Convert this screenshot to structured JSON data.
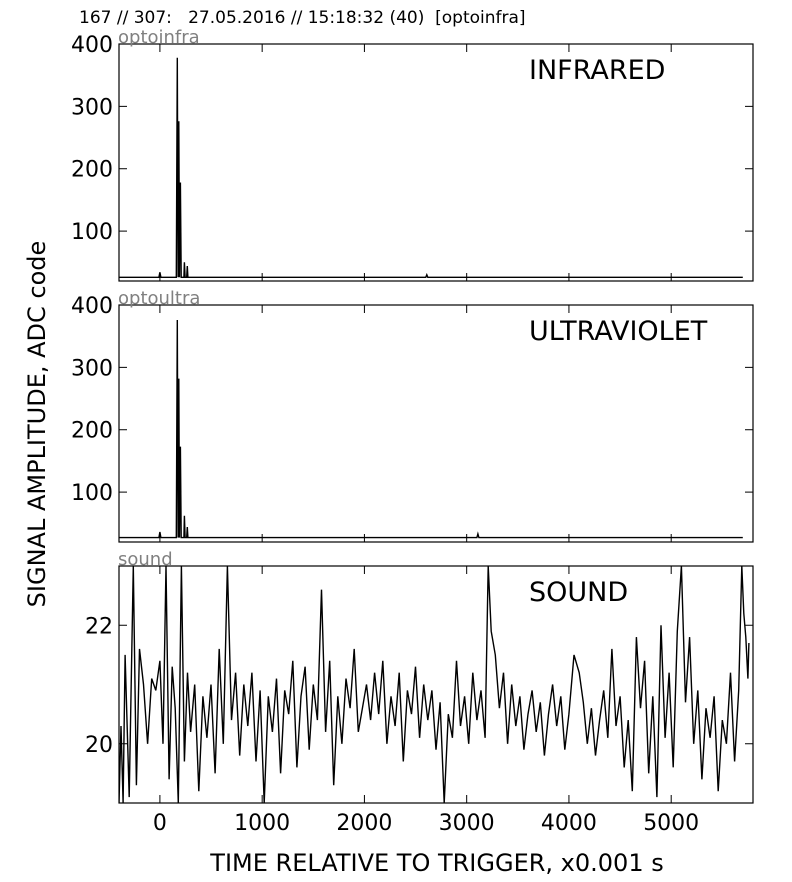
{
  "header": {
    "text": "167 // 307:   27.05.2016 // 15:18:32 (40)  [optoinfra]"
  },
  "axis_labels": {
    "y": "SIGNAL AMPLITUDE,  ADC code",
    "x": "TIME RELATIVE TO TRIGGER,   x0.001 s"
  },
  "x_axis": {
    "range": [
      -400,
      5800
    ],
    "ticks": [
      0,
      1000,
      2000,
      3000,
      4000,
      5000
    ],
    "tick_labels": [
      "0",
      "1000",
      "2000",
      "3000",
      "4000",
      "5000"
    ]
  },
  "chart_data": [
    {
      "type": "line",
      "name": "optoinfra",
      "title": "INFRARED",
      "ylim": [
        20,
        400
      ],
      "yticks": [
        100,
        200,
        300,
        400
      ],
      "ytick_labels": [
        "100",
        "200",
        "300",
        "400"
      ],
      "grid": false,
      "baseline": 26,
      "points": [
        [
          -400,
          26
        ],
        [
          -10,
          26
        ],
        [
          0,
          34
        ],
        [
          10,
          26
        ],
        [
          160,
          26
        ],
        [
          170,
          378
        ],
        [
          178,
          26
        ],
        [
          185,
          276
        ],
        [
          192,
          26
        ],
        [
          200,
          178
        ],
        [
          208,
          26
        ],
        [
          235,
          26
        ],
        [
          240,
          50
        ],
        [
          246,
          26
        ],
        [
          262,
          26
        ],
        [
          268,
          44
        ],
        [
          274,
          26
        ],
        [
          2600,
          26
        ],
        [
          2610,
          30
        ],
        [
          2620,
          26
        ],
        [
          5700,
          26
        ]
      ],
      "color": "#000000"
    },
    {
      "type": "line",
      "name": "optoultra",
      "title": "ULTRAVIOLET",
      "ylim": [
        20,
        400
      ],
      "yticks": [
        100,
        200,
        300,
        400
      ],
      "ytick_labels": [
        "100",
        "200",
        "300",
        "400"
      ],
      "grid": false,
      "baseline": 27,
      "points": [
        [
          -400,
          27
        ],
        [
          -10,
          27
        ],
        [
          0,
          36
        ],
        [
          10,
          27
        ],
        [
          160,
          27
        ],
        [
          170,
          376
        ],
        [
          178,
          27
        ],
        [
          185,
          282
        ],
        [
          192,
          27
        ],
        [
          200,
          173
        ],
        [
          208,
          27
        ],
        [
          235,
          27
        ],
        [
          240,
          62
        ],
        [
          246,
          27
        ],
        [
          262,
          27
        ],
        [
          268,
          44
        ],
        [
          274,
          27
        ],
        [
          3100,
          27
        ],
        [
          3110,
          33
        ],
        [
          3120,
          27
        ],
        [
          5700,
          27
        ]
      ],
      "color": "#000000"
    },
    {
      "type": "line",
      "name": "sound",
      "title": "SOUND",
      "ylim": [
        19.0,
        23.0
      ],
      "yticks": [
        20,
        22
      ],
      "ytick_labels": [
        "20",
        "22"
      ],
      "grid": false,
      "points": [
        [
          -400,
          19.0
        ],
        [
          -380,
          20.3
        ],
        [
          -360,
          19.0
        ],
        [
          -340,
          21.5
        ],
        [
          -300,
          19.1
        ],
        [
          -260,
          23.0
        ],
        [
          -230,
          19.3
        ],
        [
          -200,
          21.6
        ],
        [
          -160,
          21.0
        ],
        [
          -120,
          20.0
        ],
        [
          -80,
          21.1
        ],
        [
          -40,
          20.9
        ],
        [
          0,
          21.4
        ],
        [
          30,
          20.0
        ],
        [
          60,
          23.0
        ],
        [
          90,
          19.4
        ],
        [
          120,
          21.3
        ],
        [
          150,
          20.6
        ],
        [
          180,
          19.0
        ],
        [
          210,
          23.0
        ],
        [
          240,
          19.7
        ],
        [
          270,
          21.2
        ],
        [
          300,
          20.2
        ],
        [
          340,
          21.0
        ],
        [
          380,
          19.2
        ],
        [
          420,
          20.8
        ],
        [
          460,
          20.1
        ],
        [
          500,
          21.0
        ],
        [
          540,
          19.5
        ],
        [
          580,
          21.6
        ],
        [
          620,
          20.0
        ],
        [
          660,
          23.0
        ],
        [
          700,
          20.4
        ],
        [
          740,
          21.2
        ],
        [
          780,
          19.8
        ],
        [
          820,
          21.0
        ],
        [
          860,
          20.3
        ],
        [
          900,
          21.2
        ],
        [
          940,
          19.7
        ],
        [
          980,
          20.9
        ],
        [
          1020,
          19.0
        ],
        [
          1060,
          20.8
        ],
        [
          1100,
          20.2
        ],
        [
          1140,
          21.1
        ],
        [
          1180,
          19.5
        ],
        [
          1220,
          20.9
        ],
        [
          1260,
          20.5
        ],
        [
          1300,
          21.4
        ],
        [
          1340,
          19.6
        ],
        [
          1380,
          20.8
        ],
        [
          1420,
          21.3
        ],
        [
          1460,
          19.9
        ],
        [
          1500,
          21.0
        ],
        [
          1540,
          20.4
        ],
        [
          1580,
          22.6
        ],
        [
          1620,
          20.2
        ],
        [
          1660,
          21.4
        ],
        [
          1700,
          19.3
        ],
        [
          1740,
          20.8
        ],
        [
          1780,
          20.0
        ],
        [
          1820,
          21.1
        ],
        [
          1860,
          20.6
        ],
        [
          1900,
          21.6
        ],
        [
          1940,
          20.2
        ],
        [
          1980,
          20.6
        ],
        [
          2020,
          21.0
        ],
        [
          2060,
          20.4
        ],
        [
          2100,
          21.2
        ],
        [
          2140,
          20.5
        ],
        [
          2180,
          21.4
        ],
        [
          2220,
          20.0
        ],
        [
          2260,
          20.8
        ],
        [
          2300,
          20.3
        ],
        [
          2340,
          21.2
        ],
        [
          2380,
          19.7
        ],
        [
          2420,
          20.9
        ],
        [
          2460,
          20.5
        ],
        [
          2500,
          21.3
        ],
        [
          2540,
          20.1
        ],
        [
          2580,
          21.0
        ],
        [
          2620,
          20.4
        ],
        [
          2660,
          20.9
        ],
        [
          2700,
          19.9
        ],
        [
          2740,
          20.7
        ],
        [
          2780,
          19.0
        ],
        [
          2820,
          20.5
        ],
        [
          2860,
          20.1
        ],
        [
          2900,
          21.4
        ],
        [
          2940,
          20.3
        ],
        [
          2980,
          20.8
        ],
        [
          3020,
          20.0
        ],
        [
          3060,
          21.2
        ],
        [
          3100,
          20.4
        ],
        [
          3140,
          20.9
        ],
        [
          3180,
          20.1
        ],
        [
          3210,
          23.0
        ],
        [
          3240,
          21.9
        ],
        [
          3280,
          21.5
        ],
        [
          3320,
          20.6
        ],
        [
          3360,
          21.2
        ],
        [
          3400,
          20.0
        ],
        [
          3440,
          21.0
        ],
        [
          3480,
          20.3
        ],
        [
          3520,
          20.8
        ],
        [
          3560,
          19.9
        ],
        [
          3600,
          20.5
        ],
        [
          3640,
          20.9
        ],
        [
          3680,
          20.2
        ],
        [
          3720,
          20.7
        ],
        [
          3760,
          19.8
        ],
        [
          3800,
          20.5
        ],
        [
          3840,
          21.0
        ],
        [
          3880,
          20.3
        ],
        [
          3920,
          20.8
        ],
        [
          3960,
          19.9
        ],
        [
          4000,
          20.5
        ],
        [
          4050,
          21.5
        ],
        [
          4100,
          21.2
        ],
        [
          4140,
          20.7
        ],
        [
          4180,
          20.0
        ],
        [
          4220,
          20.6
        ],
        [
          4260,
          19.8
        ],
        [
          4300,
          20.4
        ],
        [
          4340,
          20.9
        ],
        [
          4380,
          20.1
        ],
        [
          4420,
          21.6
        ],
        [
          4460,
          20.3
        ],
        [
          4500,
          20.8
        ],
        [
          4540,
          19.6
        ],
        [
          4580,
          20.4
        ],
        [
          4620,
          19.2
        ],
        [
          4660,
          21.8
        ],
        [
          4700,
          20.6
        ],
        [
          4740,
          21.4
        ],
        [
          4780,
          19.5
        ],
        [
          4820,
          20.8
        ],
        [
          4860,
          19.1
        ],
        [
          4900,
          22.0
        ],
        [
          4940,
          20.1
        ],
        [
          4980,
          21.2
        ],
        [
          5020,
          19.6
        ],
        [
          5060,
          21.9
        ],
        [
          5100,
          23.0
        ],
        [
          5140,
          20.7
        ],
        [
          5180,
          21.8
        ],
        [
          5220,
          20.0
        ],
        [
          5260,
          20.9
        ],
        [
          5300,
          19.4
        ],
        [
          5340,
          20.6
        ],
        [
          5380,
          20.1
        ],
        [
          5420,
          20.8
        ],
        [
          5460,
          19.2
        ],
        [
          5500,
          20.4
        ],
        [
          5540,
          20.0
        ],
        [
          5580,
          21.2
        ],
        [
          5620,
          19.7
        ],
        [
          5660,
          20.9
        ],
        [
          5690,
          23.0
        ],
        [
          5710,
          22.2
        ],
        [
          5730,
          21.8
        ],
        [
          5750,
          21.1
        ],
        [
          5760,
          21.7
        ]
      ],
      "color": "#000000"
    }
  ],
  "colors": {
    "line": "#000000",
    "frame": "#000000",
    "source_label": "#808080"
  }
}
